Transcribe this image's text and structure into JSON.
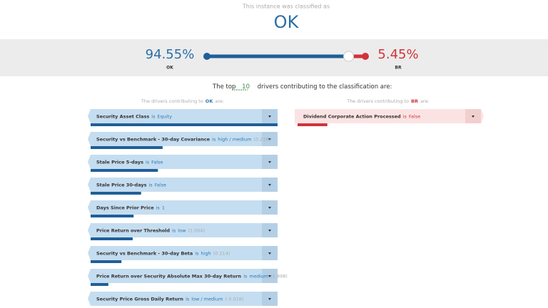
{
  "header": {
    "caption": "This instance was classified as",
    "result": "OK"
  },
  "probabilities": {
    "left": {
      "value": {
        "value": 94.55,
        "label": "94.55%"
      },
      "class": "OK"
    },
    "right": {
      "value": {
        "value": 5.45,
        "label": "5.45%"
      },
      "class": "BR"
    }
  },
  "summary": {
    "prefix": "The top",
    "count": 10,
    "suffix": "drivers contributing to the classification are:"
  },
  "columns": [
    {
      "heading_prefix": "The drivers contributing to",
      "class": "OK",
      "heading_suffix": "are:",
      "items": [
        {
          "feature": "Security Asset Class",
          "connector": "is",
          "value": "Equity",
          "weight": 100
        },
        {
          "feature": "Security vs Benchmark - 30-day Covariance",
          "connector": "is",
          "value": "high / medium",
          "score": "(0.216)",
          "weight": 38.5
        },
        {
          "feature": "Stale Price 5-days",
          "connector": "is",
          "value": "False",
          "weight": 36
        },
        {
          "feature": "Stale Price 30-days",
          "connector": "is",
          "value": "False",
          "weight": 27
        },
        {
          "feature": "Days Since Prior Price",
          "connector": "is",
          "value": "1",
          "weight": 23
        },
        {
          "feature": "Price Return over Threshold",
          "connector": "is",
          "value": "low",
          "score": "(1.004)",
          "weight": 22.5
        },
        {
          "feature": "Security vs Benchmark - 30-day Beta",
          "connector": "is",
          "value": "high",
          "score": "(0.214)",
          "weight": 16.5
        },
        {
          "feature": "Price Return over Security Absolute Max 30-day Return",
          "connector": "is",
          "value": "medium",
          "score": "(1.898)",
          "weight": 9.5
        },
        {
          "feature": "Security Price Gross Daily Return",
          "connector": "is",
          "value": "low / medium",
          "score": "(-5.018)"
        }
      ]
    },
    {
      "heading_prefix": "The drivers contributing to",
      "class": "BR",
      "heading_suffix": "are:",
      "items": [
        {
          "feature": "Dividend Corporate Action Processed",
          "connector": "is",
          "value": "False",
          "weight": 16
        }
      ]
    }
  ]
}
